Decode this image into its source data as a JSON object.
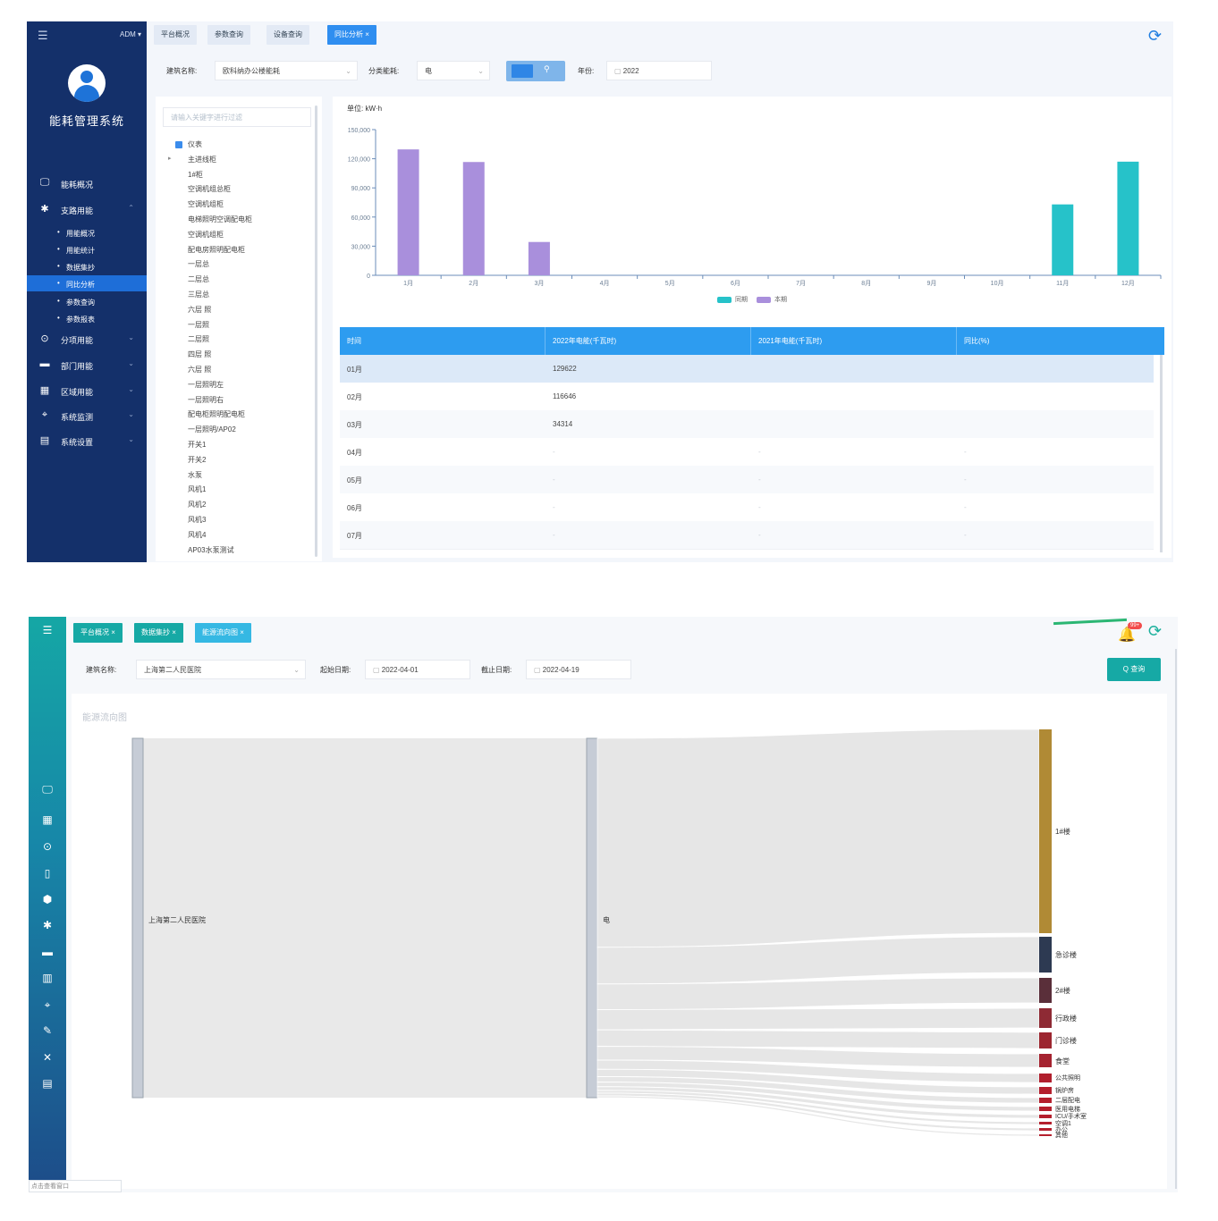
{
  "top": {
    "sidebar": {
      "user_label": "ADM ▾",
      "system_name": "能耗管理系统",
      "menu": [
        {
          "icon": "monitor-icon",
          "label": "能耗概况",
          "chevron": ""
        },
        {
          "icon": "fan-icon",
          "label": "支路用能",
          "chevron": "⌃"
        },
        {
          "icon": "clock-icon",
          "label": "分项用能",
          "chevron": "⌄"
        },
        {
          "icon": "folder-icon",
          "label": "部门用能",
          "chevron": "⌄"
        },
        {
          "icon": "building-icon",
          "label": "区域用能",
          "chevron": "⌄"
        },
        {
          "icon": "pin-icon",
          "label": "系统监测",
          "chevron": "⌄"
        },
        {
          "icon": "chart-doc-icon",
          "label": "系统设置",
          "chevron": "⌄"
        }
      ],
      "submenu": [
        "用能概况",
        "用能统计",
        "数据集抄",
        "同比分析",
        "参数查询",
        "参数报表"
      ]
    },
    "tabs": [
      "平台概况",
      "参数查询",
      "设备查询",
      "同比分析 ×"
    ],
    "filters": {
      "building_label": "建筑名称:",
      "building_value": "欧科纳办公楼能耗",
      "category_label": "分类能耗:",
      "category_value": "电",
      "year_label": "年份:",
      "year_value": "2022"
    },
    "tree": {
      "search_placeholder": "请输入关键字进行过滤",
      "items": [
        "仪表",
        "主进线柜",
        "1#柜",
        "空调机组总柜",
        "空调机组柜",
        "电梯照明空调配电柜",
        "空调机组柜",
        "配电房照明配电柜",
        "一层总",
        "二层总",
        "三层总",
        "六层 照",
        "一层照",
        "二层照",
        "四层 照",
        "六层 照",
        "一层照明左",
        "一层照明右",
        "配电柜照明配电柜",
        "一层照明/AP02",
        "开关1",
        "开关2",
        "水泵",
        "风机1",
        "风机2",
        "风机3",
        "风机4",
        "AP03水泵测试"
      ]
    },
    "chart_data": {
      "type": "bar",
      "unit_label": "单位: kW·h",
      "categories": [
        "1月",
        "2月",
        "3月",
        "4月",
        "5月",
        "6月",
        "7月",
        "8月",
        "9月",
        "10月",
        "11月",
        "12月"
      ],
      "series": [
        {
          "name": "同期",
          "color": "#26c2c9",
          "values": [
            0,
            0,
            0,
            0,
            0,
            0,
            0,
            0,
            0,
            0,
            73000,
            117000
          ]
        },
        {
          "name": "本期",
          "color": "#a98fdc",
          "values": [
            129622,
            116646,
            34314,
            0,
            0,
            0,
            0,
            0,
            0,
            0,
            0,
            0
          ]
        }
      ],
      "ylim": [
        0,
        150000
      ],
      "yticks": [
        "150,000",
        "120,000",
        "90,000",
        "60,000",
        "30,000",
        "0"
      ],
      "legend_position": "bottom"
    },
    "table": {
      "headers": [
        "时间",
        "2022年电能(千瓦时)",
        "2021年电能(千瓦时)",
        "同比(%)"
      ],
      "rows": [
        [
          "01月",
          "129622",
          "",
          ""
        ],
        [
          "02月",
          "116646",
          "",
          ""
        ],
        [
          "03月",
          "34314",
          "",
          ""
        ],
        [
          "04月",
          "-",
          "-",
          "-"
        ],
        [
          "05月",
          "-",
          "-",
          "-"
        ],
        [
          "06月",
          "-",
          "-",
          "-"
        ],
        [
          "07月",
          "-",
          "-",
          "-"
        ]
      ]
    }
  },
  "bottom": {
    "tabs": [
      "平台概况 ×",
      "数据集抄 ×",
      "能源流向图 ×"
    ],
    "badge": "99+",
    "filters": {
      "building_label": "建筑名称:",
      "building_value": "上海第二人民医院",
      "start_label": "起始日期:",
      "start_value": "2022-04-01",
      "end_label": "截止日期:",
      "end_value": "2022-04-19",
      "query_button": "Q 查询"
    },
    "panel_title": "能源流向图",
    "sankey": {
      "source": "上海第二人民医院",
      "middle": "电",
      "targets": [
        "1#楼",
        "急诊楼",
        "2#楼",
        "行政楼",
        "门诊楼",
        "食堂",
        "公共照明",
        "锅炉房",
        "二层配电",
        "医用电梯",
        "ICU/手术室",
        "空调1",
        "办公",
        "其他"
      ]
    },
    "footer_text": "点击查看窗口"
  }
}
